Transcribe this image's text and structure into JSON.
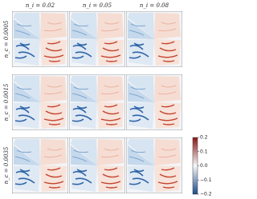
{
  "chart_data": {
    "type": "image-grid",
    "columns": [
      "n_i = 0.02",
      "n_i = 0.05",
      "n_i = 0.08"
    ],
    "rows": [
      "n_c = 0.0005",
      "n_c = 0.0015",
      "n_c = 0.0035"
    ],
    "colorbar": {
      "colors": [
        "#1a4a8a",
        "#f7f7f7",
        "#8b1414"
      ],
      "ylim": [
        -0.2,
        0.2
      ],
      "yticks": [
        {
          "value": -0.2,
          "label": "−0.2"
        },
        {
          "value": -0.1,
          "label": "−0.1"
        },
        {
          "value": 0,
          "label": "0.0"
        },
        0.1,
        0.2
      ]
    }
  }
}
